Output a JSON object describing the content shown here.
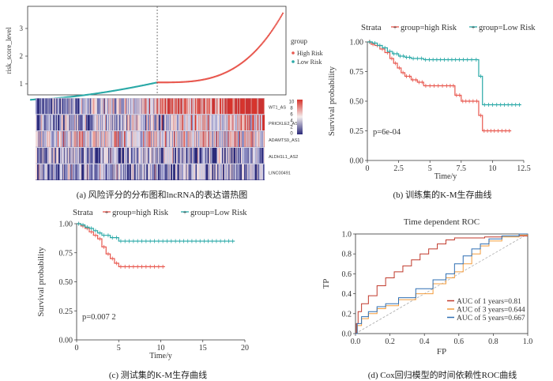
{
  "captions": {
    "a": "(a) 风险评分的分布图和lncRNA的表达谱热图",
    "b": "(b) 训练集的K-M生存曲线",
    "c": "(c) 测试集的K-M生存曲线",
    "d": "(d) Cox回归模型的时间依赖性ROC曲线"
  },
  "colors": {
    "high": "#e8584f",
    "low": "#2aa9a7",
    "heat_low": "#2b2a7a",
    "heat_high": "#d7342c",
    "roc1": "#c0392b",
    "roc3": "#f39c3c",
    "roc5": "#2f6fb3"
  },
  "chart_data": [
    {
      "type": "scatter",
      "panel": "a-risk",
      "ylabel": "risk_score_level",
      "yticks": [
        "1",
        "2",
        "3"
      ],
      "ylim": [
        0.6,
        3.8
      ],
      "cutoff_fraction": 0.5,
      "legend_title": "group",
      "legend": [
        "High Risk",
        "Low Risk"
      ],
      "low_start": 0.35,
      "low_end": 1.05,
      "high_end": 3.6,
      "n_points": 300
    },
    {
      "type": "heatmap",
      "panel": "a-heatmap",
      "rows": [
        "WT1_AS",
        "PRICKLE2_AS2",
        "ADAMTS9_AS1",
        "ALDH1L1_AS2",
        "LINC00491"
      ],
      "scale_ticks": [
        "10",
        "8",
        "6",
        "4",
        "2",
        "0"
      ],
      "n_columns": 300
    },
    {
      "type": "line",
      "panel": "b",
      "legend_title": "Strata",
      "series": [
        {
          "name": "group=high Risk",
          "points": [
            [
              0,
              1.0
            ],
            [
              0.3,
              0.98
            ],
            [
              0.6,
              0.97
            ],
            [
              1.0,
              0.94
            ],
            [
              1.4,
              0.91
            ],
            [
              1.8,
              0.86
            ],
            [
              2.1,
              0.82
            ],
            [
              2.4,
              0.78
            ],
            [
              2.7,
              0.74
            ],
            [
              3.0,
              0.71
            ],
            [
              3.5,
              0.68
            ],
            [
              4.0,
              0.66
            ],
            [
              4.5,
              0.63
            ],
            [
              5.5,
              0.63
            ],
            [
              6.5,
              0.63
            ],
            [
              7.0,
              0.55
            ],
            [
              7.5,
              0.5
            ],
            [
              8.0,
              0.5
            ],
            [
              8.6,
              0.5
            ],
            [
              8.9,
              0.38
            ],
            [
              9.2,
              0.25
            ],
            [
              10.0,
              0.25
            ],
            [
              11.5,
              0.25
            ]
          ]
        },
        {
          "name": "group=Low Risk",
          "points": [
            [
              0,
              1.0
            ],
            [
              0.4,
              0.99
            ],
            [
              0.8,
              0.97
            ],
            [
              1.2,
              0.95
            ],
            [
              1.6,
              0.92
            ],
            [
              2.0,
              0.9
            ],
            [
              2.5,
              0.88
            ],
            [
              3.0,
              0.87
            ],
            [
              3.5,
              0.86
            ],
            [
              4.5,
              0.85
            ],
            [
              6.0,
              0.85
            ],
            [
              7.5,
              0.85
            ],
            [
              8.5,
              0.85
            ],
            [
              8.9,
              0.71
            ],
            [
              9.2,
              0.47
            ],
            [
              10.5,
              0.47
            ],
            [
              12.3,
              0.47
            ]
          ]
        }
      ],
      "xlabel": "Time/y",
      "ylabel": "Survival probability",
      "xlim": [
        0,
        12.5
      ],
      "ylim": [
        0,
        1.0
      ],
      "xticks": [
        "0",
        "2.5",
        "5",
        "7.5",
        "10",
        "12.5"
      ],
      "yticks": [
        "0.00",
        "0.25",
        "0.50",
        "0.75",
        "1.00"
      ],
      "annotation": "p=6e-04"
    },
    {
      "type": "line",
      "panel": "c",
      "legend_title": "Strata",
      "series": [
        {
          "name": "group=high Risk",
          "points": [
            [
              0,
              1.0
            ],
            [
              0.5,
              0.98
            ],
            [
              1.0,
              0.96
            ],
            [
              1.5,
              0.93
            ],
            [
              2.0,
              0.9
            ],
            [
              2.5,
              0.87
            ],
            [
              3.0,
              0.8
            ],
            [
              3.5,
              0.74
            ],
            [
              4.0,
              0.7
            ],
            [
              4.5,
              0.66
            ],
            [
              5.0,
              0.63
            ],
            [
              7.0,
              0.63
            ],
            [
              10.5,
              0.63
            ]
          ]
        },
        {
          "name": "group=Low Risk",
          "points": [
            [
              0,
              1.0
            ],
            [
              0.5,
              0.99
            ],
            [
              1.0,
              0.97
            ],
            [
              1.5,
              0.96
            ],
            [
              2.0,
              0.94
            ],
            [
              2.5,
              0.92
            ],
            [
              3.0,
              0.9
            ],
            [
              4.0,
              0.88
            ],
            [
              5.0,
              0.85
            ],
            [
              8.0,
              0.85
            ],
            [
              12.0,
              0.85
            ],
            [
              18.8,
              0.85
            ]
          ]
        }
      ],
      "xlabel": "Time/y",
      "ylabel": "Survival probability",
      "xlim": [
        0,
        20
      ],
      "ylim": [
        0,
        1.0
      ],
      "xticks": [
        "0",
        "5",
        "10",
        "15",
        "20"
      ],
      "yticks": [
        "0.00",
        "0.25",
        "0.50",
        "0.75",
        "1.00"
      ],
      "annotation": "p=0.007 2"
    },
    {
      "type": "line",
      "panel": "d",
      "title": "Time dependent ROC",
      "xlabel": "FP",
      "ylabel": "TP",
      "xlim": [
        0,
        1
      ],
      "ylim": [
        0,
        1
      ],
      "xticks": [
        "0.0",
        "0.2",
        "0.4",
        "0.6",
        "0.8",
        "1.0"
      ],
      "yticks": [
        "0.0",
        "0.2",
        "0.4",
        "0.6",
        "0.8",
        "1.0"
      ],
      "legend": [
        "AUC of 1 years=0.81",
        "AUC of 3 years=0.644",
        "AUC of 5 years=0.667"
      ],
      "series": [
        {
          "name": "AUC of 1 years=0.81",
          "points": [
            [
              0,
              0
            ],
            [
              0.01,
              0.1
            ],
            [
              0.02,
              0.22
            ],
            [
              0.05,
              0.3
            ],
            [
              0.1,
              0.38
            ],
            [
              0.15,
              0.48
            ],
            [
              0.2,
              0.56
            ],
            [
              0.25,
              0.62
            ],
            [
              0.3,
              0.68
            ],
            [
              0.35,
              0.74
            ],
            [
              0.4,
              0.8
            ],
            [
              0.45,
              0.85
            ],
            [
              0.5,
              0.9
            ],
            [
              0.55,
              0.94
            ],
            [
              0.6,
              0.96
            ],
            [
              0.7,
              0.96
            ],
            [
              0.8,
              0.97
            ],
            [
              0.9,
              0.98
            ],
            [
              1.0,
              0.98
            ]
          ]
        },
        {
          "name": "AUC of 3 years=0.644",
          "points": [
            [
              0,
              0
            ],
            [
              0.02,
              0.08
            ],
            [
              0.05,
              0.15
            ],
            [
              0.1,
              0.2
            ],
            [
              0.15,
              0.25
            ],
            [
              0.2,
              0.28
            ],
            [
              0.3,
              0.34
            ],
            [
              0.4,
              0.4
            ],
            [
              0.5,
              0.5
            ],
            [
              0.55,
              0.56
            ],
            [
              0.6,
              0.62
            ],
            [
              0.65,
              0.7
            ],
            [
              0.7,
              0.8
            ],
            [
              0.75,
              0.88
            ],
            [
              0.8,
              0.93
            ],
            [
              0.9,
              0.97
            ],
            [
              1.0,
              0.99
            ]
          ]
        },
        {
          "name": "AUC of 5 years=0.667",
          "points": [
            [
              0,
              0
            ],
            [
              0.02,
              0.1
            ],
            [
              0.05,
              0.17
            ],
            [
              0.1,
              0.22
            ],
            [
              0.15,
              0.27
            ],
            [
              0.2,
              0.3
            ],
            [
              0.3,
              0.36
            ],
            [
              0.4,
              0.45
            ],
            [
              0.5,
              0.54
            ],
            [
              0.55,
              0.6
            ],
            [
              0.6,
              0.7
            ],
            [
              0.65,
              0.78
            ],
            [
              0.7,
              0.85
            ],
            [
              0.75,
              0.9
            ],
            [
              0.8,
              0.95
            ],
            [
              0.9,
              0.98
            ],
            [
              1.0,
              1.0
            ]
          ]
        }
      ]
    }
  ]
}
